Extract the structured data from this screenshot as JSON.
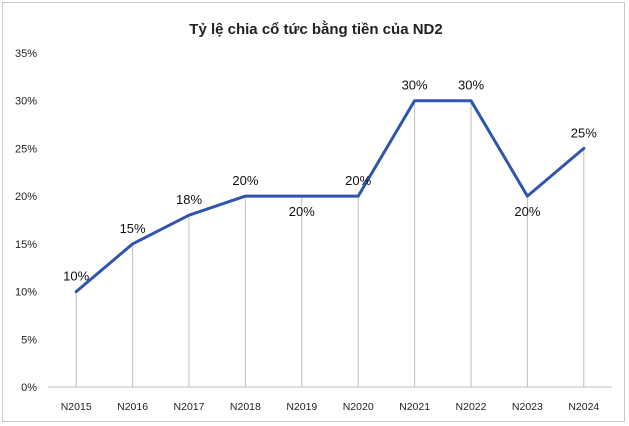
{
  "chart_data": {
    "type": "line",
    "title": "Tỷ lệ chia cổ tức bằng tiền của ND2",
    "xlabel": "",
    "ylabel": "",
    "categories": [
      "N2015",
      "N2016",
      "N2017",
      "N2018",
      "N2019",
      "N2020",
      "N2021",
      "N2022",
      "N2023",
      "N2024"
    ],
    "series": [
      {
        "values": [
          10,
          15,
          18,
          20,
          20,
          20,
          30,
          30,
          20,
          25
        ]
      }
    ],
    "data_labels": [
      "10%",
      "15%",
      "18%",
      "20%",
      "20%",
      "20%",
      "30%",
      "30%",
      "20%",
      "25%"
    ],
    "label_position": [
      "above",
      "above",
      "above",
      "above",
      "below",
      "above",
      "above",
      "above",
      "below",
      "above"
    ],
    "y_ticks": [
      "0%",
      "5%",
      "10%",
      "15%",
      "20%",
      "25%",
      "30%",
      "35%"
    ],
    "ylim": [
      0,
      35
    ],
    "grid": "vertical drop lines",
    "legend": "none",
    "colors": {
      "series": "#2f55b0",
      "gridline": "#bdbdbd"
    }
  }
}
